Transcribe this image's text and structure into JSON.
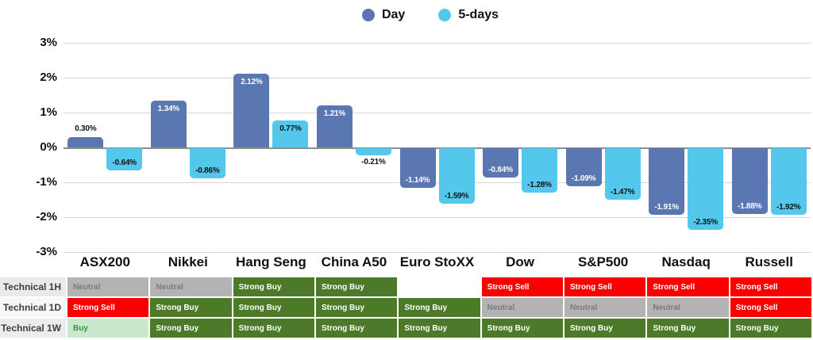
{
  "legend": {
    "items": [
      {
        "label": "Day",
        "color": "#5b77b2"
      },
      {
        "label": "5-days",
        "color": "#54c8ec"
      }
    ]
  },
  "chart_data": {
    "type": "bar",
    "title": "",
    "xlabel": "",
    "ylabel": "",
    "categories": [
      "ASX200",
      "Nikkei",
      "Hang Seng",
      "China A50",
      "Euro StoXX",
      "Dow",
      "S&P500",
      "Nasdaq",
      "Russell"
    ],
    "series": [
      {
        "name": "Day",
        "color": "#5b77b2",
        "values": [
          0.3,
          1.34,
          2.12,
          1.21,
          -1.14,
          -0.84,
          -1.09,
          -1.91,
          -1.88
        ],
        "labels": [
          "0.30%",
          "1.34%",
          "2.12%",
          "1.21%",
          "-1.14%",
          "-0.84%",
          "-1.09%",
          "-1.91%",
          "-1.88%"
        ],
        "inside_label_color": "#ffffff",
        "outside_label_color": "#111111"
      },
      {
        "name": "5-days",
        "color": "#54c8ec",
        "values": [
          -0.64,
          -0.86,
          0.77,
          -0.21,
          -1.59,
          -1.28,
          -1.47,
          -2.35,
          -1.92
        ],
        "labels": [
          "-0.64%",
          "-0.86%",
          "0.77%",
          "-0.21%",
          "-1.59%",
          "-1.28%",
          "-1.47%",
          "-2.35%",
          "-1.92%"
        ],
        "inside_label_color": "#111111",
        "outside_label_color": "#111111"
      }
    ],
    "ylim": [
      -3,
      3
    ],
    "ytick_labels": [
      "3%",
      "2%",
      "1%",
      "0%",
      "-1%",
      "-2%",
      "-3%"
    ],
    "ytick_values": [
      3,
      2,
      1,
      0,
      -1,
      -2,
      -3
    ],
    "grid": true,
    "legend_position": "top-center"
  },
  "table": {
    "row_labels": [
      "Technical 1H",
      "Technical 1D",
      "Technical 1W"
    ],
    "row_label_backgrounds": [
      "#eaeaea",
      "#f7f7f7",
      "#ececec"
    ],
    "columns": [
      "ASX200",
      "Nikkei",
      "Hang Seng",
      "China A50",
      "Euro StoXX",
      "Dow",
      "S&P500",
      "Nasdaq",
      "Russell"
    ],
    "rows": [
      [
        "Neutral",
        "Neutral",
        "Strong Buy",
        "Strong Buy",
        "",
        "Strong Sell",
        "Strong Sell",
        "Strong Sell",
        "Strong Sell"
      ],
      [
        "Strong Sell",
        "Strong Buy",
        "Strong Buy",
        "Strong Buy",
        "Strong Buy",
        "Neutral",
        "Neutral",
        "Neutral",
        "Strong Sell"
      ],
      [
        "Buy",
        "Strong Buy",
        "Strong Buy",
        "Strong Buy",
        "Strong Buy",
        "Strong Buy",
        "Strong Buy",
        "Strong Buy",
        "Strong Buy"
      ]
    ],
    "signal_styles": {
      "Strong Buy": {
        "bg": "#4c7a29",
        "fg": "#ffffff"
      },
      "Strong Sell": {
        "bg": "#fb0000",
        "fg": "#ffffff"
      },
      "Neutral": {
        "bg": "#b3b3b3",
        "fg": "#7a7a7a"
      },
      "Buy": {
        "bg": "#c9e8cd",
        "fg": "#3a9440"
      },
      "": {
        "bg": "#ffffff",
        "fg": "#000000"
      }
    }
  }
}
